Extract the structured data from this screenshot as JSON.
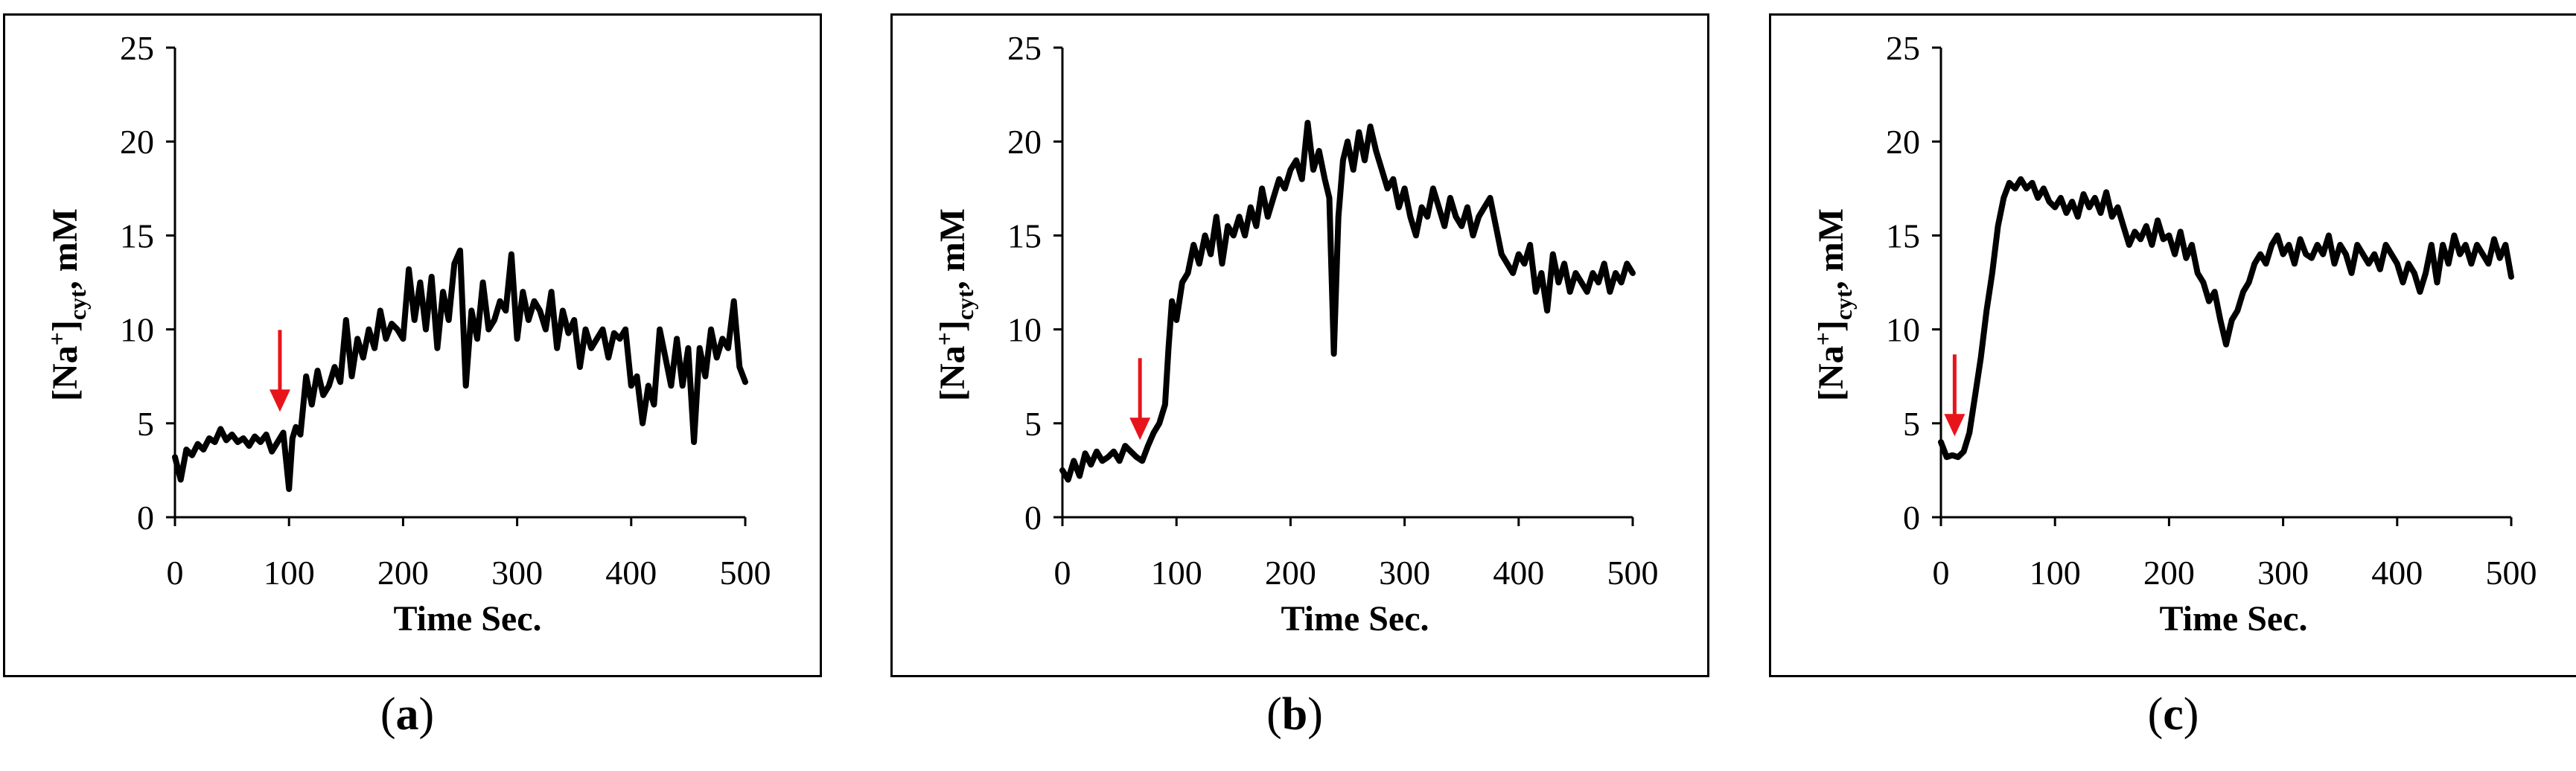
{
  "chart_data": [
    {
      "panel": "a",
      "type": "line",
      "xlabel": "Time Sec.",
      "ylabel": {
        "main": "[Na",
        "sup": "+",
        "bracket": "]",
        "sub": "cyt",
        "unit": ", mM"
      },
      "xlim": [
        0,
        500
      ],
      "ylim": [
        0,
        25
      ],
      "xticks": [
        "0",
        "100",
        "200",
        "300",
        "400",
        "500"
      ],
      "yticks": [
        "0",
        "5",
        "10",
        "15",
        "20",
        "25"
      ],
      "arrow_at": 92,
      "series": [
        {
          "color": "#000000",
          "x": [
            0,
            5,
            10,
            15,
            20,
            25,
            30,
            35,
            40,
            45,
            50,
            55,
            60,
            65,
            70,
            75,
            80,
            85,
            90,
            95,
            100,
            103,
            106,
            110,
            115,
            120,
            125,
            130,
            135,
            140,
            145,
            150,
            155,
            160,
            165,
            170,
            175,
            180,
            185,
            190,
            195,
            200,
            205,
            210,
            215,
            220,
            225,
            230,
            235,
            240,
            245,
            250,
            255,
            260,
            265,
            270,
            275,
            280,
            285,
            290,
            295,
            300,
            305,
            310,
            315,
            320,
            325,
            330,
            335,
            340,
            345,
            350,
            355,
            360,
            365,
            370,
            375,
            380,
            385,
            390,
            395,
            400,
            405,
            410,
            415,
            420,
            425,
            430,
            435,
            440,
            445,
            450,
            455,
            460,
            465,
            470,
            475,
            480,
            485,
            490,
            495,
            500
          ],
          "y": [
            3.2,
            2.0,
            3.6,
            3.3,
            3.9,
            3.6,
            4.2,
            4.0,
            4.7,
            4.1,
            4.4,
            4.0,
            4.2,
            3.8,
            4.3,
            4.0,
            4.4,
            3.5,
            4.0,
            4.5,
            1.5,
            4.2,
            4.8,
            4.4,
            7.5,
            6.0,
            7.8,
            6.5,
            7.0,
            8.0,
            7.2,
            10.5,
            7.5,
            9.5,
            8.5,
            10.0,
            9.0,
            11.0,
            9.5,
            10.3,
            10.0,
            9.5,
            13.2,
            10.5,
            12.5,
            10.0,
            12.8,
            9.0,
            12.0,
            10.5,
            13.5,
            14.2,
            7.0,
            11.0,
            9.5,
            12.5,
            10.0,
            10.5,
            11.5,
            11.0,
            14.0,
            9.5,
            12.0,
            10.5,
            11.5,
            11.0,
            10.0,
            12.0,
            9.0,
            11.0,
            9.8,
            10.5,
            8.0,
            10.0,
            9.0,
            9.5,
            10.0,
            8.5,
            9.8,
            9.5,
            10.0,
            7.0,
            7.5,
            5.0,
            7.0,
            6.0,
            10.0,
            8.5,
            7.0,
            9.5,
            7.0,
            9.0,
            4.0,
            9.0,
            7.5,
            10.0,
            8.5,
            9.5,
            9.0,
            11.5,
            8.0,
            7.2
          ]
        }
      ]
    },
    {
      "panel": "b",
      "type": "line",
      "xlabel": "Time Sec.",
      "ylabel": {
        "main": "[Na",
        "sup": "+",
        "bracket": "]",
        "sub": "cyt",
        "unit": ", mM"
      },
      "xlim": [
        0,
        500
      ],
      "ylim": [
        0,
        25
      ],
      "xticks": [
        "0",
        "100",
        "200",
        "300",
        "400",
        "500"
      ],
      "yticks": [
        "0",
        "5",
        "10",
        "15",
        "20",
        "25"
      ],
      "arrow_at": 68,
      "series": [
        {
          "color": "#000000",
          "x": [
            0,
            5,
            10,
            15,
            20,
            25,
            30,
            35,
            40,
            45,
            50,
            55,
            60,
            65,
            70,
            75,
            80,
            85,
            90,
            93,
            96,
            100,
            105,
            110,
            115,
            120,
            125,
            130,
            135,
            140,
            145,
            150,
            155,
            160,
            165,
            170,
            175,
            180,
            185,
            190,
            195,
            200,
            205,
            210,
            215,
            220,
            225,
            230,
            234,
            238,
            242,
            246,
            250,
            255,
            260,
            265,
            270,
            275,
            280,
            285,
            290,
            295,
            300,
            305,
            310,
            315,
            320,
            325,
            330,
            335,
            340,
            345,
            350,
            355,
            360,
            365,
            370,
            375,
            380,
            385,
            390,
            395,
            400,
            405,
            410,
            415,
            420,
            425,
            430,
            435,
            440,
            445,
            450,
            455,
            460,
            465,
            470,
            475,
            480,
            485,
            490,
            495,
            500
          ],
          "y": [
            2.5,
            2.0,
            3.0,
            2.2,
            3.4,
            2.8,
            3.5,
            3.0,
            3.2,
            3.5,
            3.0,
            3.8,
            3.5,
            3.2,
            3.0,
            3.8,
            4.5,
            5.0,
            6.0,
            9.0,
            11.5,
            10.5,
            12.5,
            13.0,
            14.5,
            13.5,
            15.0,
            14.0,
            16.0,
            13.5,
            15.5,
            15.0,
            16.0,
            15.0,
            16.5,
            15.5,
            17.5,
            16.0,
            17.0,
            18.0,
            17.5,
            18.5,
            19.0,
            18.0,
            21.0,
            18.5,
            19.5,
            18.0,
            17.0,
            8.7,
            16.0,
            19.0,
            20.0,
            18.5,
            20.5,
            19.0,
            20.8,
            19.5,
            18.5,
            17.5,
            18.0,
            16.5,
            17.5,
            16.0,
            15.0,
            16.5,
            16.0,
            17.5,
            16.5,
            15.5,
            17.0,
            16.0,
            15.5,
            16.5,
            15.0,
            16.0,
            16.5,
            17.0,
            15.5,
            14.0,
            13.5,
            13.0,
            14.0,
            13.5,
            14.5,
            12.0,
            13.0,
            11.0,
            14.0,
            12.5,
            13.5,
            12.0,
            13.0,
            12.5,
            12.0,
            13.0,
            12.5,
            13.5,
            12.0,
            13.0,
            12.5,
            13.5,
            13.0
          ]
        }
      ]
    },
    {
      "panel": "c",
      "type": "line",
      "xlabel": "Time Sec.",
      "ylabel": {
        "main": "[Na",
        "sup": "+",
        "bracket": "]",
        "sub": "cyt",
        "unit": ", mM"
      },
      "xlim": [
        0,
        500
      ],
      "ylim": [
        0,
        25
      ],
      "xticks": [
        "0",
        "100",
        "200",
        "300",
        "400",
        "500"
      ],
      "yticks": [
        "0",
        "5",
        "10",
        "15",
        "20",
        "25"
      ],
      "arrow_at": 12,
      "series": [
        {
          "color": "#000000",
          "x": [
            0,
            5,
            10,
            15,
            20,
            25,
            30,
            35,
            40,
            45,
            50,
            55,
            60,
            65,
            70,
            75,
            80,
            85,
            90,
            95,
            100,
            105,
            110,
            115,
            120,
            125,
            130,
            135,
            140,
            145,
            150,
            155,
            160,
            165,
            170,
            175,
            180,
            185,
            190,
            195,
            200,
            205,
            210,
            215,
            220,
            225,
            230,
            235,
            240,
            245,
            250,
            255,
            260,
            265,
            270,
            275,
            280,
            285,
            290,
            295,
            300,
            305,
            310,
            315,
            320,
            325,
            330,
            335,
            340,
            345,
            350,
            355,
            360,
            365,
            370,
            375,
            380,
            385,
            390,
            395,
            400,
            405,
            410,
            415,
            420,
            425,
            430,
            435,
            440,
            445,
            450,
            455,
            460,
            465,
            470,
            475,
            480,
            485,
            490,
            495,
            500
          ],
          "y": [
            4.0,
            3.2,
            3.3,
            3.2,
            3.5,
            4.5,
            6.5,
            8.5,
            11.0,
            13.0,
            15.5,
            17.0,
            17.8,
            17.5,
            18.0,
            17.5,
            17.8,
            17.0,
            17.5,
            16.8,
            16.5,
            17.0,
            16.2,
            16.8,
            16.0,
            17.2,
            16.5,
            17.0,
            16.2,
            17.3,
            16.0,
            16.5,
            15.5,
            14.5,
            15.2,
            14.8,
            15.5,
            14.5,
            15.8,
            14.8,
            15.0,
            14.0,
            15.2,
            13.8,
            14.5,
            13.0,
            12.5,
            11.5,
            12.0,
            10.5,
            9.2,
            10.5,
            11.0,
            12.0,
            12.5,
            13.5,
            14.0,
            13.5,
            14.5,
            15.0,
            14.0,
            14.5,
            13.5,
            14.8,
            14.0,
            13.8,
            14.5,
            14.0,
            15.0,
            13.5,
            14.5,
            14.0,
            13.0,
            14.5,
            14.0,
            13.5,
            14.0,
            13.2,
            14.5,
            14.0,
            13.5,
            12.5,
            13.5,
            13.0,
            12.0,
            13.0,
            14.5,
            12.5,
            14.5,
            13.5,
            15.0,
            14.0,
            14.5,
            13.5,
            14.5,
            14.0,
            13.5,
            14.8,
            13.8,
            14.5,
            12.8
          ]
        }
      ]
    }
  ],
  "captions": {
    "a": "a",
    "b": "b",
    "c": "c"
  },
  "arrow_color": "#e8141b"
}
